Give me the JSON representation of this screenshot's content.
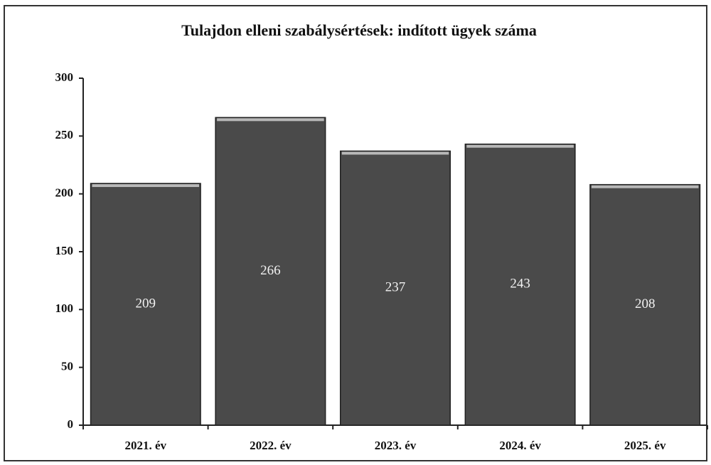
{
  "chart_data": {
    "type": "bar",
    "title": "Tulajdon elleni szabálysértések: indított ügyek száma",
    "categories": [
      "2021. év",
      "2022. év",
      "2023. év",
      "2024. év",
      "2025. év"
    ],
    "values": [
      209,
      266,
      237,
      243,
      208
    ],
    "color": "#4a4a4a",
    "ylim": [
      0,
      300
    ],
    "yticks": [
      0,
      50,
      100,
      150,
      200,
      250,
      300
    ],
    "grid": false
  }
}
